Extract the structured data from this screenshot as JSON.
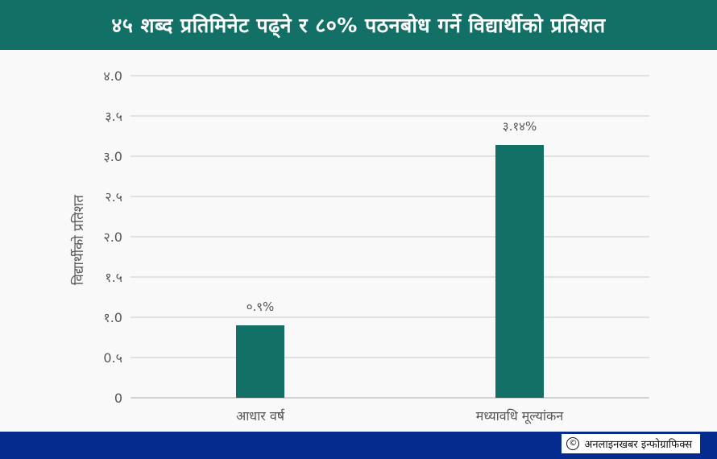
{
  "header": {
    "title": "४५ शब्द प्रतिमिनेट पढ्ने र ८०% पठनबोध गर्ने विद्यार्थीको प्रतिशत"
  },
  "footer": {
    "credit_symbol": "©",
    "credit_text": "अनलाइनखबर इन्फोग्राफिक्स"
  },
  "colors": {
    "header_bg": "#137066",
    "bar": "#137066",
    "footer_bg": "#062b8f",
    "grid": "#cccccc"
  },
  "chart_data": {
    "type": "bar",
    "title": "४५ शब्द प्रतिमिनेट पढ्ने र ८०% पठनबोध गर्ने विद्यार्थीको प्रतिशत",
    "ylabel": "विद्यार्थीको प्रतिशत",
    "xlabel": "",
    "categories": [
      "आधार वर्ष",
      "मध्यावधि मूल्यांकन"
    ],
    "values": [
      0.9,
      3.14
    ],
    "data_labels": [
      "०.९%",
      "३.१४%"
    ],
    "ylim": [
      0,
      4
    ],
    "yticks": [
      0,
      0.5,
      1,
      1.5,
      2,
      2.5,
      3,
      3.5,
      4
    ],
    "ytick_labels": [
      "0",
      "0.५",
      "१.0",
      "१.५",
      "२.0",
      "२.५",
      "३.0",
      "३.५",
      "४.0"
    ],
    "grid": true,
    "legend": "none"
  }
}
